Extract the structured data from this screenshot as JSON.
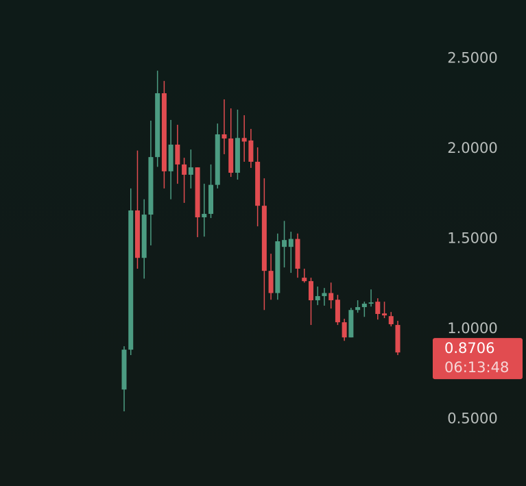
{
  "chart_data": {
    "type": "candlestick",
    "open": [
      0.665,
      0.886,
      1.658,
      1.395,
      1.635,
      1.954,
      2.308,
      1.875,
      2.023,
      1.913,
      1.856,
      1.897,
      1.62,
      1.639,
      1.8,
      2.08,
      2.057,
      1.867,
      2.06,
      2.046,
      1.928,
      1.684,
      1.323,
      1.2,
      1.456,
      1.456,
      1.5,
      1.285,
      1.266,
      1.16,
      1.183,
      1.2,
      1.163,
      1.038,
      0.954,
      1.106,
      1.122,
      1.141,
      1.152,
      1.087,
      1.072,
      1.023
    ],
    "high": [
      0.905,
      1.78,
      1.99,
      1.72,
      2.156,
      2.433,
      2.376,
      2.16,
      2.133,
      1.95,
      1.996,
      1.897,
      1.806,
      1.913,
      2.14,
      2.274,
      2.224,
      2.217,
      2.186,
      2.11,
      2.008,
      1.836,
      1.418,
      1.53,
      1.6,
      1.54,
      1.53,
      1.335,
      1.285,
      1.236,
      1.228,
      1.258,
      1.19,
      1.057,
      1.118,
      1.16,
      1.152,
      1.22,
      1.171,
      1.152,
      1.095,
      1.046
    ],
    "low": [
      0.544,
      0.856,
      1.335,
      1.28,
      1.464,
      1.9,
      1.78,
      1.72,
      1.806,
      1.7,
      1.78,
      1.51,
      1.513,
      1.616,
      1.78,
      1.97,
      1.844,
      1.829,
      1.928,
      1.894,
      1.57,
      1.106,
      1.163,
      1.163,
      1.342,
      1.312,
      1.285,
      1.258,
      1.023,
      1.133,
      1.13,
      1.114,
      1.023,
      0.935,
      0.954,
      1.091,
      1.068,
      1.125,
      1.053,
      1.061,
      1.015,
      0.856
    ],
    "close": [
      0.886,
      1.658,
      1.395,
      1.635,
      1.954,
      2.308,
      1.875,
      2.023,
      1.913,
      1.856,
      1.897,
      1.62,
      1.639,
      1.8,
      2.08,
      2.057,
      1.867,
      2.06,
      2.04,
      1.928,
      1.684,
      1.323,
      1.2,
      1.487,
      1.494,
      1.5,
      1.335,
      1.266,
      1.16,
      1.183,
      1.2,
      1.16,
      1.038,
      0.954,
      1.106,
      1.122,
      1.141,
      1.148,
      1.084,
      1.076,
      1.027,
      0.8706
    ],
    "up_color": "#4c9c82",
    "down_color": "#e14c50",
    "ylim": [
      0.13,
      2.825
    ],
    "yticks": [
      {
        "value": 0.5,
        "label": "0.5000"
      },
      {
        "value": 1.0,
        "label": "1.0000"
      },
      {
        "value": 1.5,
        "label": "1.5000"
      },
      {
        "value": 2.0,
        "label": "2.0000"
      },
      {
        "value": 2.5,
        "label": "2.5000"
      }
    ],
    "last_price": 0.8706,
    "countdown": "06:13:48"
  }
}
